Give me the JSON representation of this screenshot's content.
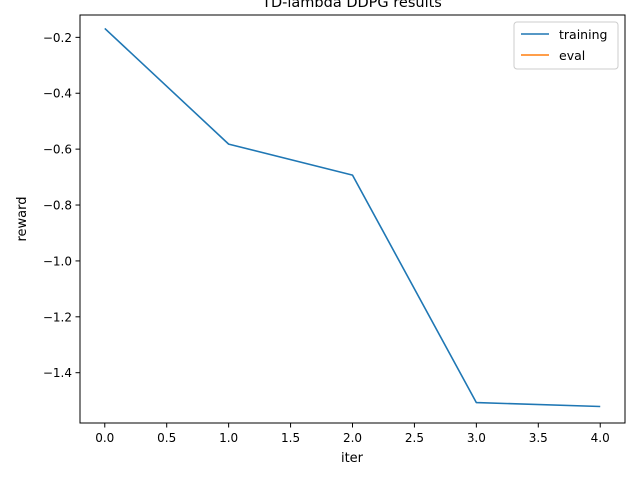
{
  "chart_data": {
    "type": "line",
    "title": "TD-lambda DDPG results",
    "xlabel": "iter",
    "ylabel": "reward",
    "xlim": [
      -0.2,
      4.2
    ],
    "ylim": [
      -1.58,
      -0.12
    ],
    "xticks": [
      0.0,
      0.5,
      1.0,
      1.5,
      2.0,
      2.5,
      3.0,
      3.5,
      4.0
    ],
    "xtick_labels": [
      "0.0",
      "0.5",
      "1.0",
      "1.5",
      "2.0",
      "2.5",
      "3.0",
      "3.5",
      "4.0"
    ],
    "yticks": [
      -0.2,
      -0.4,
      -0.6,
      -0.8,
      -1.0,
      -1.2,
      -1.4
    ],
    "ytick_labels": [
      "−0.2",
      "−0.4",
      "−0.6",
      "−0.8",
      "−1.0",
      "−1.2",
      "−1.4"
    ],
    "grid": false,
    "legend_position": "top-right",
    "series": [
      {
        "name": "training",
        "color": "#1f77b4",
        "x": [
          0,
          1,
          2,
          3,
          4
        ],
        "y": [
          -0.168,
          -0.582,
          -0.693,
          -1.507,
          -1.521
        ]
      },
      {
        "name": "eval",
        "color": "#ff7f0e",
        "x": [],
        "y": []
      }
    ]
  }
}
